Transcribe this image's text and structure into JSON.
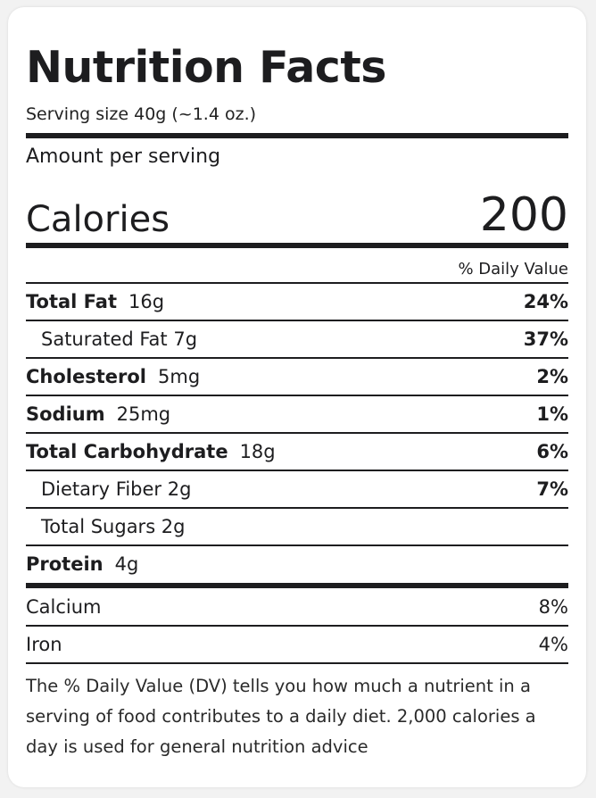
{
  "label": {
    "title": "Nutrition Facts",
    "serving_size": "Serving size 40g (~1.4 oz.)",
    "amount_per_serving": "Amount per serving",
    "calories_label": "Calories",
    "calories_value": "200",
    "daily_value_header": "% Daily Value",
    "nutrients": [
      {
        "name": "Total Fat",
        "amount": "16g",
        "dv": "24%"
      },
      {
        "name": "Saturated Fat 7g",
        "dv": "37%"
      },
      {
        "name": "Cholesterol",
        "amount": "5mg",
        "dv": "2%"
      },
      {
        "name": "Sodium",
        "amount": "25mg",
        "dv": "1%"
      },
      {
        "name": "Total Carbohydrate",
        "amount": "18g",
        "dv": "6%"
      },
      {
        "name": "Dietary Fiber 2g",
        "dv": "7%"
      },
      {
        "name": "Total Sugars 2g"
      },
      {
        "name": "Protein",
        "amount": "4g"
      }
    ],
    "minerals": [
      {
        "name": "Calcium",
        "dv": "8%"
      },
      {
        "name": "Iron",
        "dv": "4%"
      }
    ],
    "footnote": "The % Daily Value (DV) tells you how much a nutrient in a serving of food contributes to a daily diet. 2,000 calories a day is used for general nutrition advice"
  }
}
